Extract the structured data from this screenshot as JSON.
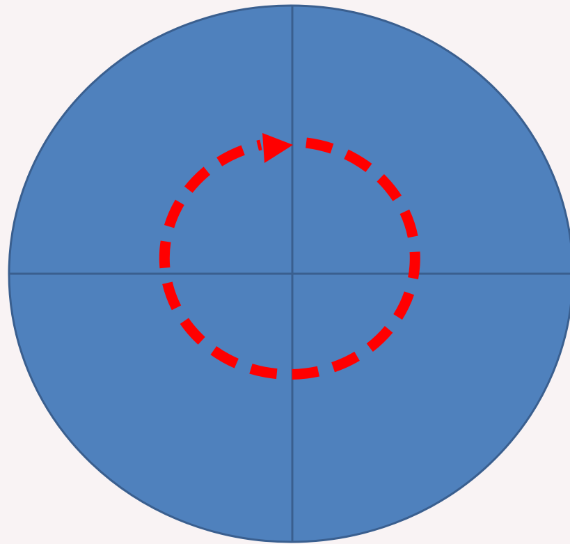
{
  "colors": {
    "background": "#f9f3f4",
    "disk_fill": "#4f81bd",
    "disk_stroke": "#3a5f8f",
    "rotation_path": "#ff0000"
  },
  "icons": {
    "rotation_arrow": "circular-arrow-icon"
  },
  "diagram": {
    "shape": "circle",
    "quadrant_lines": 2,
    "rotation_direction": "clockwise",
    "rotation_line_style": "dashed"
  }
}
